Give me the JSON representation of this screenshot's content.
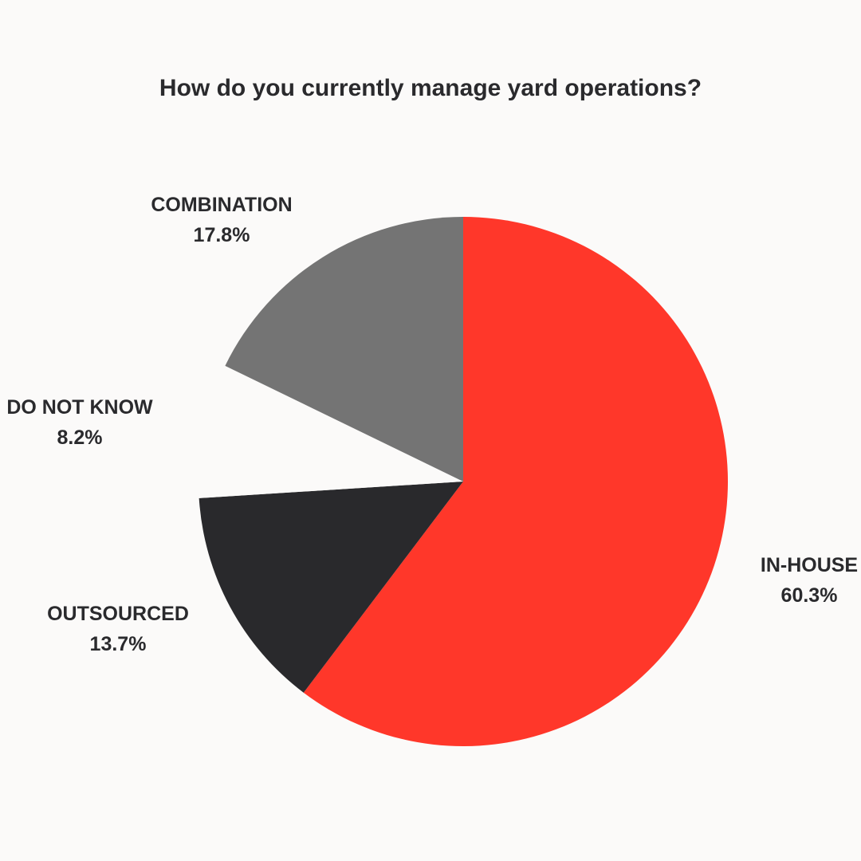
{
  "chart_data": {
    "type": "pie",
    "title": "How do you currently manage yard operations?",
    "slices": [
      {
        "label": "IN-HOUSE",
        "value": 60.3,
        "value_label": "60.3%",
        "color": "#ff372a"
      },
      {
        "label": "OUTSOURCED",
        "value": 13.7,
        "value_label": "13.7%",
        "color": "#29292c"
      },
      {
        "label": "DO NOT KNOW",
        "value": 8.2,
        "value_label": "8.2%",
        "color": "#fbfaf9"
      },
      {
        "label": "COMBINATION",
        "value": 17.8,
        "value_label": "17.8%",
        "color": "#747474"
      }
    ],
    "start_angle": "top (12 o'clock)",
    "direction": "clockwise",
    "legend": "none",
    "labels": "outside slices"
  }
}
